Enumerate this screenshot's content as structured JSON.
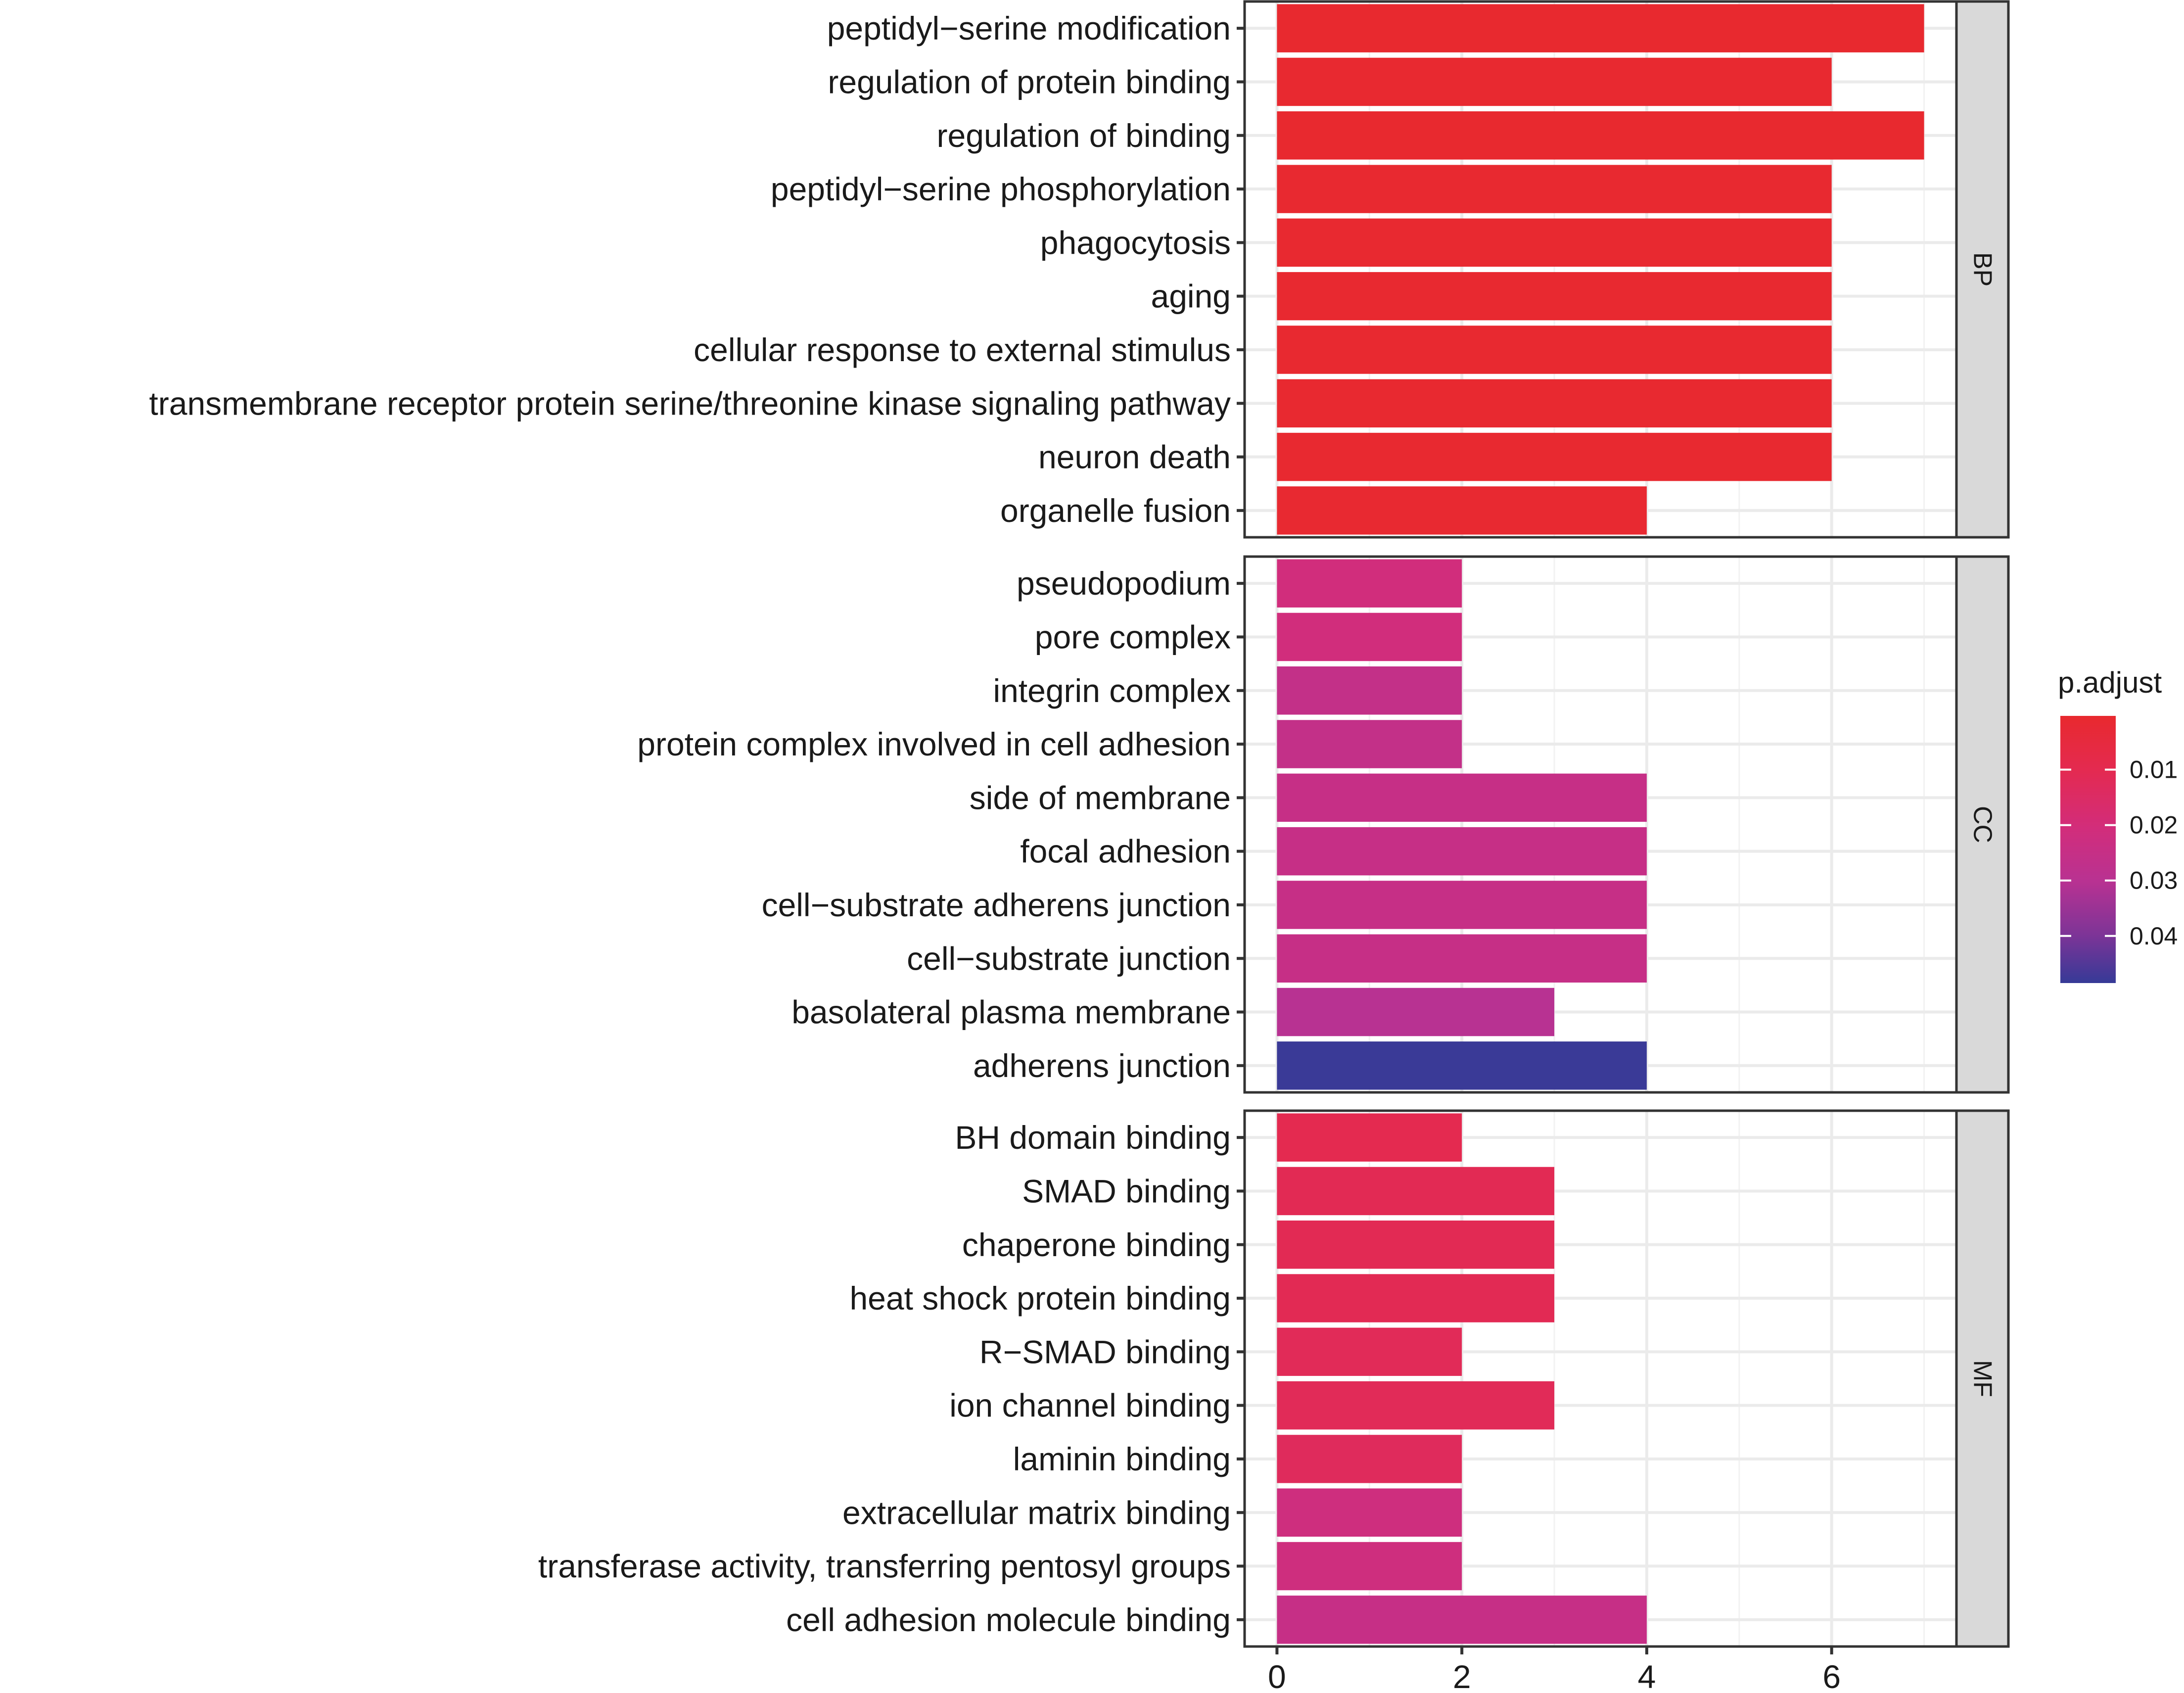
{
  "chart_data": {
    "type": "bar",
    "orientation": "horizontal",
    "facet_variable": "ONTOLOGY",
    "facets": [
      {
        "name": "BP",
        "categories": [
          "peptidyl−serine modification",
          "regulation of protein binding",
          "regulation of binding",
          "peptidyl−serine phosphorylation",
          "phagocytosis",
          "aging",
          "cellular response to external stimulus",
          "transmembrane receptor protein serine/threonine kinase signaling pathway",
          "neuron death",
          "organelle fusion"
        ],
        "values": [
          7,
          6,
          7,
          6,
          6,
          6,
          6,
          6,
          6,
          4
        ],
        "p_adjust": [
          0.0005,
          0.0008,
          0.0006,
          0.0009,
          0.001,
          0.001,
          0.001,
          0.001,
          0.001,
          0.0012
        ]
      },
      {
        "name": "CC",
        "categories": [
          "pseudopodium",
          "pore complex",
          "integrin complex",
          "protein complex involved in cell adhesion",
          "side of membrane",
          "focal adhesion",
          "cell−substrate adherens junction",
          "cell−substrate junction",
          "basolateral plasma membrane",
          "adherens junction"
        ],
        "values": [
          2,
          2,
          2,
          2,
          4,
          4,
          4,
          4,
          3,
          4
        ],
        "p_adjust": [
          0.021,
          0.021,
          0.026,
          0.026,
          0.025,
          0.025,
          0.025,
          0.025,
          0.03,
          0.048
        ]
      },
      {
        "name": "MF",
        "categories": [
          "BH domain binding",
          "SMAD binding",
          "chaperone binding",
          "heat shock protein binding",
          "R−SMAD binding",
          "ion channel binding",
          "laminin binding",
          "extracellular matrix binding",
          "transferase activity, transferring pentosyl groups",
          "cell adhesion molecule binding"
        ],
        "values": [
          2,
          3,
          3,
          3,
          2,
          3,
          2,
          2,
          2,
          4
        ],
        "p_adjust": [
          0.01,
          0.011,
          0.011,
          0.011,
          0.012,
          0.012,
          0.013,
          0.022,
          0.022,
          0.025
        ]
      }
    ],
    "x_ticks": [
      0,
      2,
      4,
      6
    ],
    "xlim": [
      -0.35,
      7.35
    ],
    "xlabel": "",
    "ylabel": "",
    "legend": {
      "title": "p.adjust",
      "position": "right",
      "ticks": [
        "0.01",
        "0.02",
        "0.03",
        "0.04"
      ],
      "tick_values": [
        0.01,
        0.02,
        0.03,
        0.04
      ],
      "range": [
        0.0003,
        0.0485
      ],
      "low_color": "#e8292e",
      "high_color": "#363a97"
    },
    "grid": true
  }
}
